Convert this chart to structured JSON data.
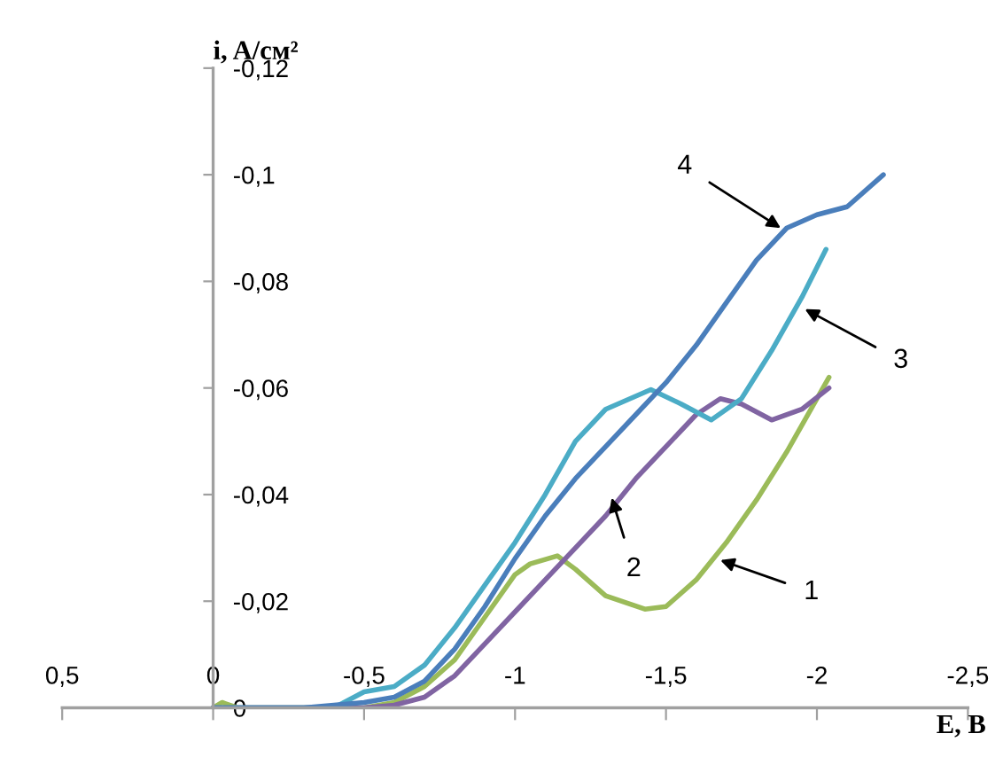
{
  "chart_data": {
    "type": "line",
    "xlabel": "E, B",
    "ylabel": "i, A/см²",
    "xlim": [
      0.5,
      -2.5
    ],
    "ylim": [
      0,
      -0.12
    ],
    "xticks": [
      {
        "value": 0.5,
        "label": "0,5"
      },
      0,
      {
        "value": -0.5,
        "label": "-0,5"
      },
      -1,
      {
        "value": -1.5,
        "label": "-1,5"
      },
      -2,
      {
        "value": -2.5,
        "label": "-2,5"
      }
    ],
    "yticks": [
      0,
      {
        "value": -0.02,
        "label": "-0,02"
      },
      {
        "value": -0.04,
        "label": "-0,04"
      },
      {
        "value": -0.06,
        "label": "-0,06"
      },
      {
        "value": -0.08,
        "label": "-0,08"
      },
      {
        "value": -0.1,
        "label": "-0,1"
      },
      {
        "value": -0.12,
        "label": "-0,12"
      }
    ],
    "grid": false,
    "legend": false,
    "marker": "none",
    "line_style": "solid",
    "series": [
      {
        "color": "#9bbb59",
        "x": [
          0,
          -0.03,
          -0.08,
          -0.5,
          -0.6,
          -0.7,
          -0.8,
          -0.9,
          -1.0,
          -1.05,
          -1.14,
          -1.2,
          -1.3,
          -1.43,
          -1.5,
          -1.6,
          -1.7,
          -1.8,
          -1.9,
          -2.04
        ],
        "values": [
          0,
          -0.001,
          0,
          0,
          -0.001,
          -0.004,
          -0.009,
          -0.017,
          -0.025,
          -0.027,
          -0.0285,
          -0.026,
          -0.021,
          -0.0185,
          -0.019,
          -0.024,
          -0.031,
          -0.039,
          -0.048,
          -0.062
        ]
      },
      {
        "color": "#8064a2",
        "x": [
          0,
          -0.5,
          -0.6,
          -0.7,
          -0.8,
          -0.9,
          -1.0,
          -1.1,
          -1.2,
          -1.3,
          -1.4,
          -1.5,
          -1.6,
          -1.68,
          -1.75,
          -1.85,
          -1.95,
          -2.04
        ],
        "values": [
          0,
          0,
          -0.0005,
          -0.002,
          -0.006,
          -0.012,
          -0.018,
          -0.024,
          -0.03,
          -0.036,
          -0.043,
          -0.049,
          -0.055,
          -0.058,
          -0.057,
          -0.054,
          -0.056,
          -0.06
        ]
      },
      {
        "color": "#4bacc6",
        "x": [
          0,
          -0.4,
          -0.5,
          -0.6,
          -0.7,
          -0.8,
          -0.9,
          -1.0,
          -1.1,
          -1.2,
          -1.3,
          -1.45,
          -1.55,
          -1.65,
          -1.75,
          -1.85,
          -1.95,
          -2.03
        ],
        "values": [
          0,
          0,
          -0.003,
          -0.004,
          -0.008,
          -0.015,
          -0.023,
          -0.031,
          -0.04,
          -0.05,
          -0.056,
          -0.0597,
          -0.057,
          -0.054,
          -0.058,
          -0.067,
          -0.077,
          -0.086
        ]
      },
      {
        "color": "#4a7ebb",
        "x": [
          0,
          -0.3,
          -0.5,
          -0.6,
          -0.7,
          -0.8,
          -0.9,
          -1.0,
          -1.1,
          -1.2,
          -1.3,
          -1.4,
          -1.5,
          -1.6,
          -1.7,
          -1.8,
          -1.9,
          -2.0,
          -2.1,
          -2.22
        ],
        "values": [
          0,
          0,
          -0.001,
          -0.002,
          -0.005,
          -0.011,
          -0.019,
          -0.028,
          -0.036,
          -0.043,
          -0.049,
          -0.055,
          -0.061,
          -0.068,
          -0.076,
          -0.084,
          -0.09,
          -0.0925,
          -0.094,
          -0.1
        ]
      }
    ],
    "annotations": [
      {
        "text": "1",
        "x": -1.68,
        "y": -0.0277
      },
      {
        "text": "2",
        "x": -1.32,
        "y": -0.0394
      },
      {
        "text": "3",
        "x": -1.96,
        "y": -0.0748
      },
      {
        "text": "4",
        "x": -1.88,
        "y": -0.09
      }
    ]
  }
}
